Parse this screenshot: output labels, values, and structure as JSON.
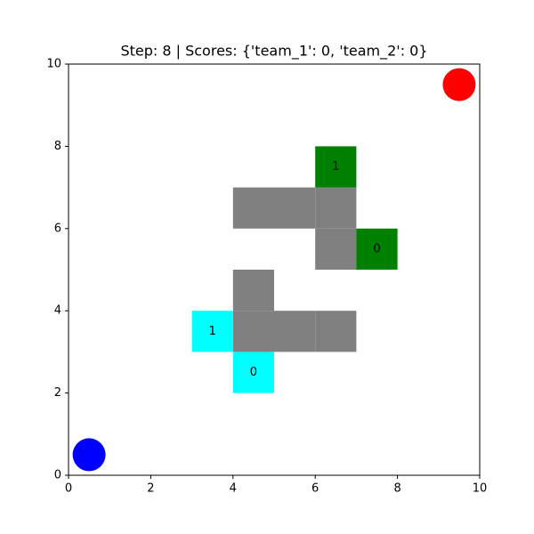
{
  "chart_data": {
    "type": "grid",
    "title": "Step: 8 | Scores: {'team_1': 0, 'team_2': 0}",
    "xlim": [
      0,
      10
    ],
    "ylim": [
      0,
      10
    ],
    "xticks": [
      0,
      2,
      4,
      6,
      8,
      10
    ],
    "yticks": [
      0,
      2,
      4,
      6,
      8,
      10
    ],
    "wall_color": "#808080",
    "walls": [
      {
        "x": 4,
        "y": 6
      },
      {
        "x": 5,
        "y": 6
      },
      {
        "x": 6,
        "y": 6
      },
      {
        "x": 6,
        "y": 5
      },
      {
        "x": 4,
        "y": 4
      },
      {
        "x": 4,
        "y": 3
      },
      {
        "x": 5,
        "y": 3
      },
      {
        "x": 6,
        "y": 3
      }
    ],
    "agents": [
      {
        "x": 6,
        "y": 7,
        "label": 1,
        "color": "#008000"
      },
      {
        "x": 7,
        "y": 5,
        "label": 0,
        "color": "#008000"
      },
      {
        "x": 3,
        "y": 3,
        "label": 1,
        "color": "#00ffff"
      },
      {
        "x": 4,
        "y": 2,
        "label": 0,
        "color": "#00ffff"
      }
    ],
    "bases": [
      {
        "x": 9.5,
        "y": 9.5,
        "color": "#ff0000"
      },
      {
        "x": 0.5,
        "y": 0.5,
        "color": "#0000ff"
      }
    ]
  }
}
